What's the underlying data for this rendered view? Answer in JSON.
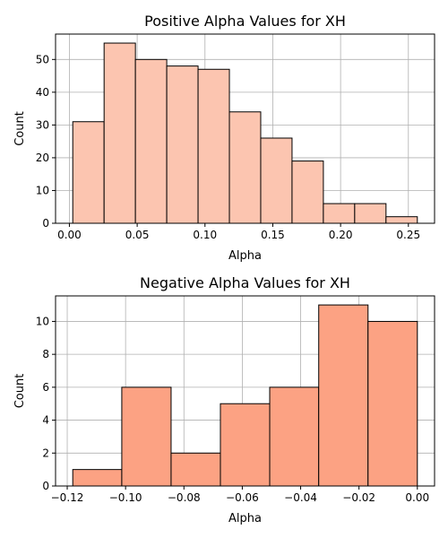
{
  "chart_data": [
    {
      "type": "bar",
      "title": "Positive Alpha Values for XH",
      "xlabel": "Alpha",
      "ylabel": "Count",
      "bar_color": "#fcc5b0",
      "edge_color": "#000000",
      "bins": [
        {
          "x0": 0.0025,
          "x1": 0.0256,
          "value": 31
        },
        {
          "x0": 0.0256,
          "x1": 0.0487,
          "value": 55
        },
        {
          "x0": 0.0487,
          "x1": 0.0718,
          "value": 50
        },
        {
          "x0": 0.0718,
          "x1": 0.0949,
          "value": 48
        },
        {
          "x0": 0.0949,
          "x1": 0.118,
          "value": 47
        },
        {
          "x0": 0.118,
          "x1": 0.1411,
          "value": 34
        },
        {
          "x0": 0.1411,
          "x1": 0.1642,
          "value": 26
        },
        {
          "x0": 0.1642,
          "x1": 0.1873,
          "value": 19
        },
        {
          "x0": 0.1873,
          "x1": 0.2104,
          "value": 6
        },
        {
          "x0": 0.2104,
          "x1": 0.2335,
          "value": 6
        },
        {
          "x0": 0.2335,
          "x1": 0.2566,
          "value": 2
        }
      ],
      "xlim": [
        -0.0102,
        0.2693
      ],
      "ylim": [
        0,
        57.75
      ],
      "xticks": [
        0.0,
        0.05,
        0.1,
        0.15,
        0.2,
        0.25
      ],
      "xtick_labels": [
        "0.00",
        "0.05",
        "0.10",
        "0.15",
        "0.20",
        "0.25"
      ],
      "yticks": [
        0,
        10,
        20,
        30,
        40,
        50
      ],
      "ytick_labels": [
        "0",
        "10",
        "20",
        "30",
        "40",
        "50"
      ],
      "grid": true
    },
    {
      "type": "bar",
      "title": "Negative Alpha Values for XH",
      "xlabel": "Alpha",
      "ylabel": "Count",
      "bar_color": "#fca283",
      "edge_color": "#000000",
      "bins": [
        {
          "x0": -0.1181,
          "x1": -0.1013,
          "value": 1
        },
        {
          "x0": -0.1013,
          "x1": -0.0844,
          "value": 6
        },
        {
          "x0": -0.0844,
          "x1": -0.0675,
          "value": 2
        },
        {
          "x0": -0.0675,
          "x1": -0.0506,
          "value": 5
        },
        {
          "x0": -0.0506,
          "x1": -0.0338,
          "value": 6
        },
        {
          "x0": -0.0338,
          "x1": -0.0169,
          "value": 11
        },
        {
          "x0": -0.0169,
          "x1": 0.0,
          "value": 10
        }
      ],
      "xlim": [
        -0.124,
        0.0059
      ],
      "ylim": [
        0,
        11.55
      ],
      "xticks": [
        -0.12,
        -0.1,
        -0.08,
        -0.06,
        -0.04,
        -0.02,
        0.0
      ],
      "xtick_labels": [
        "−0.12",
        "−0.10",
        "−0.08",
        "−0.06",
        "−0.04",
        "−0.02",
        "0.00"
      ],
      "yticks": [
        0,
        2,
        4,
        6,
        8,
        10
      ],
      "ytick_labels": [
        "0",
        "2",
        "4",
        "6",
        "8",
        "10"
      ],
      "grid": true
    }
  ]
}
